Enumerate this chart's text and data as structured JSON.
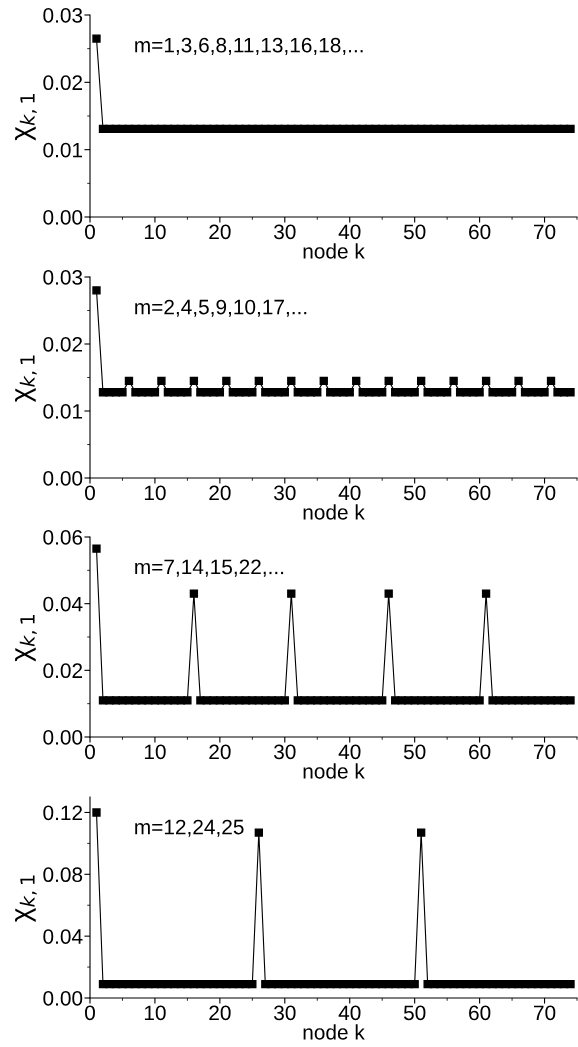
{
  "chart_data": [
    {
      "type": "line",
      "xlabel": "node k",
      "ylabel": "χ$_{k,1}$",
      "annotations": [
        "m=1,3,6,8,11,13,16,18,..."
      ],
      "marker": "square",
      "line_style": "solid",
      "grid": false,
      "legend": false,
      "x": [
        1,
        2,
        3,
        4,
        5,
        6,
        7,
        8,
        9,
        10,
        11,
        12,
        13,
        14,
        15,
        16,
        17,
        18,
        19,
        20,
        21,
        22,
        23,
        24,
        25,
        26,
        27,
        28,
        29,
        30,
        31,
        32,
        33,
        34,
        35,
        36,
        37,
        38,
        39,
        40,
        41,
        42,
        43,
        44,
        45,
        46,
        47,
        48,
        49,
        50,
        51,
        52,
        53,
        54,
        55,
        56,
        57,
        58,
        59,
        60,
        61,
        62,
        63,
        64,
        65,
        66,
        67,
        68,
        69,
        70,
        71,
        72,
        73,
        74
      ],
      "series": [
        {
          "color": "#000000",
          "values": [
            0.0265,
            0.0131,
            0.0131,
            0.0131,
            0.0131,
            0.0131,
            0.0131,
            0.0131,
            0.0131,
            0.0131,
            0.0131,
            0.0131,
            0.0131,
            0.0131,
            0.0131,
            0.0131,
            0.0131,
            0.0131,
            0.0131,
            0.0131,
            0.0131,
            0.0131,
            0.0131,
            0.0131,
            0.0131,
            0.0131,
            0.0131,
            0.0131,
            0.0131,
            0.0131,
            0.0131,
            0.0131,
            0.0131,
            0.0131,
            0.0131,
            0.0131,
            0.0131,
            0.0131,
            0.0131,
            0.0131,
            0.0131,
            0.0131,
            0.0131,
            0.0131,
            0.0131,
            0.0131,
            0.0131,
            0.0131,
            0.0131,
            0.0131,
            0.0131,
            0.0131,
            0.0131,
            0.0131,
            0.0131,
            0.0131,
            0.0131,
            0.0131,
            0.0131,
            0.0131,
            0.0131,
            0.0131,
            0.0131,
            0.0131,
            0.0131,
            0.0131,
            0.0131,
            0.0131,
            0.0131,
            0.0131,
            0.0131,
            0.0131,
            0.0131,
            0.0131
          ]
        }
      ],
      "xlim": [
        0,
        75
      ],
      "xticks": [
        0,
        10,
        20,
        30,
        40,
        50,
        60,
        70
      ],
      "ylim": [
        0,
        0.03
      ],
      "yticks": [
        {
          "value": 0,
          "label": "0.00"
        },
        {
          "value": 0.01,
          "label": "0.01"
        },
        {
          "value": 0.02,
          "label": "0.02"
        },
        {
          "value": 0.03,
          "label": "0.03"
        }
      ]
    },
    {
      "type": "line",
      "xlabel": "node k",
      "ylabel": "χ$_{k,1}$",
      "annotations": [
        "m=2,4,5,9,10,17,..."
      ],
      "marker": "square",
      "line_style": "solid",
      "grid": false,
      "legend": false,
      "x": [
        1,
        2,
        3,
        4,
        5,
        6,
        7,
        8,
        9,
        10,
        11,
        12,
        13,
        14,
        15,
        16,
        17,
        18,
        19,
        20,
        21,
        22,
        23,
        24,
        25,
        26,
        27,
        28,
        29,
        30,
        31,
        32,
        33,
        34,
        35,
        36,
        37,
        38,
        39,
        40,
        41,
        42,
        43,
        44,
        45,
        46,
        47,
        48,
        49,
        50,
        51,
        52,
        53,
        54,
        55,
        56,
        57,
        58,
        59,
        60,
        61,
        62,
        63,
        64,
        65,
        66,
        67,
        68,
        69,
        70,
        71,
        72,
        73,
        74
      ],
      "series": [
        {
          "color": "#000000",
          "values": [
            0.028,
            0.0128,
            0.0128,
            0.0128,
            0.0128,
            0.0145,
            0.0128,
            0.0128,
            0.0128,
            0.0128,
            0.0145,
            0.0128,
            0.0128,
            0.0128,
            0.0128,
            0.0145,
            0.0128,
            0.0128,
            0.0128,
            0.0128,
            0.0145,
            0.0128,
            0.0128,
            0.0128,
            0.0128,
            0.0145,
            0.0128,
            0.0128,
            0.0128,
            0.0128,
            0.0145,
            0.0128,
            0.0128,
            0.0128,
            0.0128,
            0.0145,
            0.0128,
            0.0128,
            0.0128,
            0.0128,
            0.0145,
            0.0128,
            0.0128,
            0.0128,
            0.0128,
            0.0145,
            0.0128,
            0.0128,
            0.0128,
            0.0128,
            0.0145,
            0.0128,
            0.0128,
            0.0128,
            0.0128,
            0.0145,
            0.0128,
            0.0128,
            0.0128,
            0.0128,
            0.0145,
            0.0128,
            0.0128,
            0.0128,
            0.0128,
            0.0145,
            0.0128,
            0.0128,
            0.0128,
            0.0128,
            0.0145,
            0.0128,
            0.0128,
            0.0128
          ]
        }
      ],
      "xlim": [
        0,
        75
      ],
      "xticks": [
        0,
        10,
        20,
        30,
        40,
        50,
        60,
        70
      ],
      "ylim": [
        0,
        0.03
      ],
      "yticks": [
        {
          "value": 0,
          "label": "0.00"
        },
        {
          "value": 0.01,
          "label": "0.01"
        },
        {
          "value": 0.02,
          "label": "0.02"
        },
        {
          "value": 0.03,
          "label": "0.03"
        }
      ]
    },
    {
      "type": "line",
      "xlabel": "node k",
      "ylabel": "χ$_{k,1}$",
      "annotations": [
        "m=7,14,15,22,..."
      ],
      "marker": "square",
      "line_style": "solid",
      "grid": false,
      "legend": false,
      "x": [
        1,
        2,
        3,
        4,
        5,
        6,
        7,
        8,
        9,
        10,
        11,
        12,
        13,
        14,
        15,
        16,
        17,
        18,
        19,
        20,
        21,
        22,
        23,
        24,
        25,
        26,
        27,
        28,
        29,
        30,
        31,
        32,
        33,
        34,
        35,
        36,
        37,
        38,
        39,
        40,
        41,
        42,
        43,
        44,
        45,
        46,
        47,
        48,
        49,
        50,
        51,
        52,
        53,
        54,
        55,
        56,
        57,
        58,
        59,
        60,
        61,
        62,
        63,
        64,
        65,
        66,
        67,
        68,
        69,
        70,
        71,
        72,
        73,
        74
      ],
      "series": [
        {
          "color": "#000000",
          "values": [
            0.0565,
            0.011,
            0.011,
            0.011,
            0.011,
            0.011,
            0.011,
            0.011,
            0.011,
            0.011,
            0.011,
            0.011,
            0.011,
            0.011,
            0.011,
            0.043,
            0.011,
            0.011,
            0.011,
            0.011,
            0.011,
            0.011,
            0.011,
            0.011,
            0.011,
            0.011,
            0.011,
            0.011,
            0.011,
            0.011,
            0.043,
            0.011,
            0.011,
            0.011,
            0.011,
            0.011,
            0.011,
            0.011,
            0.011,
            0.011,
            0.011,
            0.011,
            0.011,
            0.011,
            0.011,
            0.043,
            0.011,
            0.011,
            0.011,
            0.011,
            0.011,
            0.011,
            0.011,
            0.011,
            0.011,
            0.011,
            0.011,
            0.011,
            0.011,
            0.011,
            0.043,
            0.011,
            0.011,
            0.011,
            0.011,
            0.011,
            0.011,
            0.011,
            0.011,
            0.011,
            0.011,
            0.011,
            0.011,
            0.011
          ]
        }
      ],
      "xlim": [
        0,
        75
      ],
      "xticks": [
        0,
        10,
        20,
        30,
        40,
        50,
        60,
        70
      ],
      "ylim": [
        0,
        0.06
      ],
      "yticks": [
        {
          "value": 0,
          "label": "0.00"
        },
        {
          "value": 0.02,
          "label": "0.02"
        },
        {
          "value": 0.04,
          "label": "0.04"
        },
        {
          "value": 0.06,
          "label": "0.06"
        }
      ]
    },
    {
      "type": "line",
      "xlabel": "node k",
      "ylabel": "χ$_{k,1}$",
      "annotations": [
        "m=12,24,25"
      ],
      "marker": "square",
      "line_style": "solid",
      "grid": false,
      "legend": false,
      "x": [
        1,
        2,
        3,
        4,
        5,
        6,
        7,
        8,
        9,
        10,
        11,
        12,
        13,
        14,
        15,
        16,
        17,
        18,
        19,
        20,
        21,
        22,
        23,
        24,
        25,
        26,
        27,
        28,
        29,
        30,
        31,
        32,
        33,
        34,
        35,
        36,
        37,
        38,
        39,
        40,
        41,
        42,
        43,
        44,
        45,
        46,
        47,
        48,
        49,
        50,
        51,
        52,
        53,
        54,
        55,
        56,
        57,
        58,
        59,
        60,
        61,
        62,
        63,
        64,
        65,
        66,
        67,
        68,
        69,
        70,
        71,
        72,
        73,
        74
      ],
      "series": [
        {
          "color": "#000000",
          "values": [
            0.12,
            0.009,
            0.009,
            0.009,
            0.009,
            0.009,
            0.009,
            0.009,
            0.009,
            0.009,
            0.009,
            0.009,
            0.009,
            0.009,
            0.009,
            0.009,
            0.009,
            0.009,
            0.009,
            0.009,
            0.009,
            0.009,
            0.009,
            0.009,
            0.009,
            0.107,
            0.009,
            0.009,
            0.009,
            0.009,
            0.009,
            0.009,
            0.009,
            0.009,
            0.009,
            0.009,
            0.009,
            0.009,
            0.009,
            0.009,
            0.009,
            0.009,
            0.009,
            0.009,
            0.009,
            0.009,
            0.009,
            0.009,
            0.009,
            0.009,
            0.107,
            0.009,
            0.009,
            0.009,
            0.009,
            0.009,
            0.009,
            0.009,
            0.009,
            0.009,
            0.009,
            0.009,
            0.009,
            0.009,
            0.009,
            0.009,
            0.009,
            0.009,
            0.009,
            0.009,
            0.009,
            0.009,
            0.009,
            0.009
          ]
        }
      ],
      "xlim": [
        0,
        75
      ],
      "xticks": [
        0,
        10,
        20,
        30,
        40,
        50,
        60,
        70
      ],
      "ylim": [
        0,
        0.13
      ],
      "yticks": [
        {
          "value": 0,
          "label": "0.00"
        },
        {
          "value": 0.04,
          "label": "0.04"
        },
        {
          "value": 0.08,
          "label": "0.08"
        },
        {
          "value": 0.12,
          "label": "0.12"
        }
      ]
    }
  ]
}
